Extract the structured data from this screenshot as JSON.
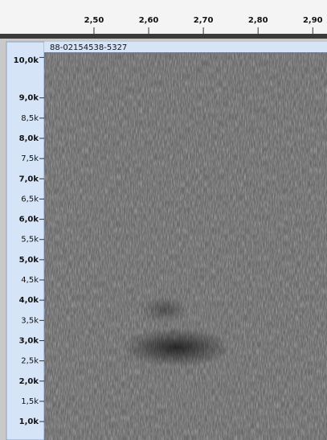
{
  "chart_data": {
    "type": "spectrogram",
    "track_name": "88-02154538-5327",
    "xlim": [
      2.409,
      2.926
    ],
    "xticks": [
      {
        "value": 2.5,
        "label": "2,50"
      },
      {
        "value": 2.6,
        "label": "2,60"
      },
      {
        "value": 2.7,
        "label": "2,70"
      },
      {
        "value": 2.8,
        "label": "2,80"
      },
      {
        "value": 2.9,
        "label": "2,90"
      }
    ],
    "ylim": [
      544,
      10127
    ],
    "yticks": [
      {
        "value": 10000,
        "label": "10,0k"
      },
      {
        "value": 9000,
        "label": "9,0k"
      },
      {
        "value": 8500,
        "label": "8,5k"
      },
      {
        "value": 8000,
        "label": "8,0k"
      },
      {
        "value": 7500,
        "label": "7,5k"
      },
      {
        "value": 7000,
        "label": "7,0k"
      },
      {
        "value": 6500,
        "label": "6,5k"
      },
      {
        "value": 6000,
        "label": "6,0k"
      },
      {
        "value": 5500,
        "label": "5,5k"
      },
      {
        "value": 5000,
        "label": "5,0k"
      },
      {
        "value": 4500,
        "label": "4,5k"
      },
      {
        "value": 4000,
        "label": "4,0k"
      },
      {
        "value": 3500,
        "label": "3,5k"
      },
      {
        "value": 3000,
        "label": "3,0k"
      },
      {
        "value": 2500,
        "label": "2,5k"
      },
      {
        "value": 2000,
        "label": "2,0k"
      },
      {
        "value": 1500,
        "label": "1,5k"
      },
      {
        "value": 1000,
        "label": "1,0k"
      }
    ]
  }
}
